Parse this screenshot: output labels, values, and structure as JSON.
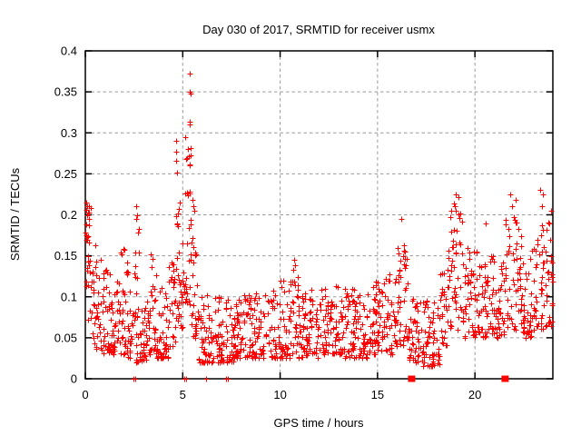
{
  "chart_data": {
    "type": "scatter",
    "title": "Day 030 of 2017, SRMTID for receiver usmx",
    "xlabel": "GPS time / hours",
    "ylabel": "SRMTID / TECUs",
    "xlim": [
      0,
      24
    ],
    "ylim": [
      0,
      0.4
    ],
    "xticks": [
      0,
      5,
      10,
      15,
      20
    ],
    "ytick_values": [
      0,
      0.05,
      0.1,
      0.15,
      0.2,
      0.25,
      0.3,
      0.35,
      0.4
    ],
    "ytick_labels": [
      "0",
      "0.05",
      "0.1",
      "0.15",
      "0.2",
      "0.25",
      "0.3",
      "0.35",
      "0.4"
    ],
    "legend": "none",
    "grid": "dashed",
    "grid_color": "#9a9a9a",
    "axis_color": "#000000",
    "marker": "plus",
    "marker_color": "#ff0000",
    "marker_size": 7,
    "seed": 2017030,
    "bands": [
      [
        0.0,
        0.3,
        30,
        0.05,
        0.215,
        0.8
      ],
      [
        0.3,
        0.8,
        36,
        0.035,
        0.17,
        1.6
      ],
      [
        0.8,
        1.3,
        36,
        0.03,
        0.135,
        1.5
      ],
      [
        1.3,
        1.8,
        36,
        0.03,
        0.12,
        1.6
      ],
      [
        1.8,
        2.15,
        26,
        0.03,
        0.16,
        1.5
      ],
      [
        2.15,
        2.45,
        22,
        0.025,
        0.135,
        1.6
      ],
      [
        2.45,
        2.8,
        26,
        0.02,
        0.185,
        1.4
      ],
      [
        2.8,
        3.3,
        36,
        0.02,
        0.095,
        1.5
      ],
      [
        3.3,
        3.65,
        26,
        0.03,
        0.15,
        1.8
      ],
      [
        3.65,
        4.3,
        46,
        0.025,
        0.115,
        1.6
      ],
      [
        4.3,
        4.65,
        26,
        0.04,
        0.155,
        1.4
      ],
      [
        4.65,
        5.0,
        32,
        0.06,
        0.27,
        1.6
      ],
      [
        5.0,
        5.45,
        36,
        0.09,
        0.3,
        1.5
      ],
      [
        5.45,
        5.8,
        28,
        0.05,
        0.2,
        1.7
      ],
      [
        5.8,
        6.5,
        48,
        0.02,
        0.105,
        1.6
      ],
      [
        6.5,
        7.6,
        72,
        0.02,
        0.1,
        1.6
      ],
      [
        7.6,
        9.6,
        132,
        0.025,
        0.105,
        1.5
      ],
      [
        9.6,
        10.5,
        60,
        0.025,
        0.12,
        1.6
      ],
      [
        10.5,
        10.9,
        28,
        0.03,
        0.14,
        1.5
      ],
      [
        10.9,
        12.0,
        76,
        0.025,
        0.11,
        1.5
      ],
      [
        12.0,
        13.3,
        86,
        0.03,
        0.115,
        1.5
      ],
      [
        13.3,
        14.5,
        82,
        0.025,
        0.11,
        1.5
      ],
      [
        14.5,
        15.4,
        62,
        0.03,
        0.12,
        1.5
      ],
      [
        15.4,
        16.0,
        40,
        0.03,
        0.13,
        1.5
      ],
      [
        16.0,
        16.6,
        40,
        0.04,
        0.165,
        1.4
      ],
      [
        16.6,
        17.2,
        40,
        0.02,
        0.1,
        1.6
      ],
      [
        17.2,
        18.2,
        66,
        0.015,
        0.095,
        1.6
      ],
      [
        18.2,
        18.7,
        32,
        0.04,
        0.17,
        1.3
      ],
      [
        18.7,
        19.35,
        42,
        0.06,
        0.215,
        1.2
      ],
      [
        19.35,
        20.2,
        56,
        0.05,
        0.16,
        1.5
      ],
      [
        20.2,
        21.1,
        60,
        0.05,
        0.15,
        1.5
      ],
      [
        21.1,
        21.55,
        30,
        0.05,
        0.15,
        1.4
      ],
      [
        21.55,
        22.45,
        58,
        0.06,
        0.21,
        1.3
      ],
      [
        22.45,
        23.2,
        52,
        0.05,
        0.165,
        1.4
      ],
      [
        23.2,
        24.0,
        54,
        0.06,
        0.2,
        1.3
      ]
    ],
    "outliers": [
      [
        0.05,
        0.215
      ],
      [
        0.1,
        0.21
      ],
      [
        0.08,
        0.2
      ],
      [
        1.95,
        0.158
      ],
      [
        2.62,
        0.21
      ],
      [
        2.66,
        0.2
      ],
      [
        2.6,
        0.195
      ],
      [
        3.35,
        0.152
      ],
      [
        4.67,
        0.29
      ],
      [
        4.68,
        0.277
      ],
      [
        4.66,
        0.266
      ],
      [
        4.69,
        0.252
      ],
      [
        5.35,
        0.372
      ],
      [
        5.38,
        0.35
      ],
      [
        5.4,
        0.348
      ],
      [
        5.35,
        0.314
      ],
      [
        5.37,
        0.31
      ],
      [
        5.33,
        0.272
      ],
      [
        5.36,
        0.26
      ],
      [
        5.5,
        0.218
      ],
      [
        5.55,
        0.21
      ],
      [
        5.6,
        0.205
      ],
      [
        10.7,
        0.145
      ],
      [
        10.75,
        0.138
      ],
      [
        16.2,
        0.195
      ],
      [
        16.35,
        0.163
      ],
      [
        16.4,
        0.155
      ],
      [
        18.95,
        0.21
      ],
      [
        19.0,
        0.225
      ],
      [
        19.15,
        0.222
      ],
      [
        20.55,
        0.19
      ],
      [
        21.8,
        0.225
      ],
      [
        22.1,
        0.218
      ],
      [
        21.9,
        0.21
      ],
      [
        23.35,
        0.23
      ],
      [
        23.45,
        0.21
      ],
      [
        23.5,
        0.225
      ],
      [
        23.9,
        0.205
      ]
    ],
    "baseline_ticks": [
      2.48,
      2.56,
      5.08,
      5.17,
      6.18,
      7.2,
      7.32
    ],
    "baseline_squares": [
      16.75,
      21.55
    ]
  }
}
